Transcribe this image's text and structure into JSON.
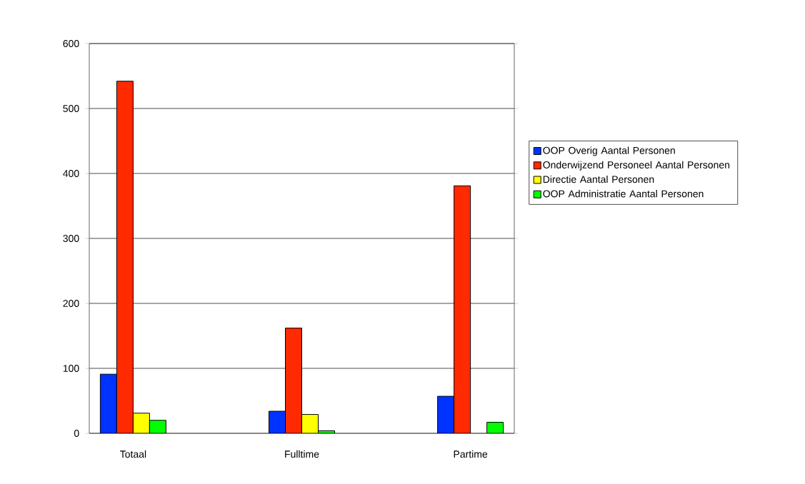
{
  "chart_data": {
    "type": "bar",
    "categories": [
      "Totaal",
      "Fulltime",
      "Partime"
    ],
    "series": [
      {
        "name": "OOP Overig Aantal Personen",
        "color": "#0033ff",
        "values": [
          91,
          34,
          57
        ]
      },
      {
        "name": "Onderwijzend Personeel Aantal Personen",
        "color": "#ff2a00",
        "values": [
          542,
          162,
          381
        ]
      },
      {
        "name": "Directie Aantal Personen",
        "color": "#ffff00",
        "values": [
          31,
          29,
          null
        ]
      },
      {
        "name": "OOP Administratie Aantal Personen",
        "color": "#00ff00",
        "values": [
          20,
          4,
          17
        ]
      }
    ],
    "ylim": [
      0,
      600
    ],
    "yticks": [
      0,
      100,
      200,
      300,
      400,
      500,
      600
    ],
    "grid": "y",
    "legend": "right"
  }
}
